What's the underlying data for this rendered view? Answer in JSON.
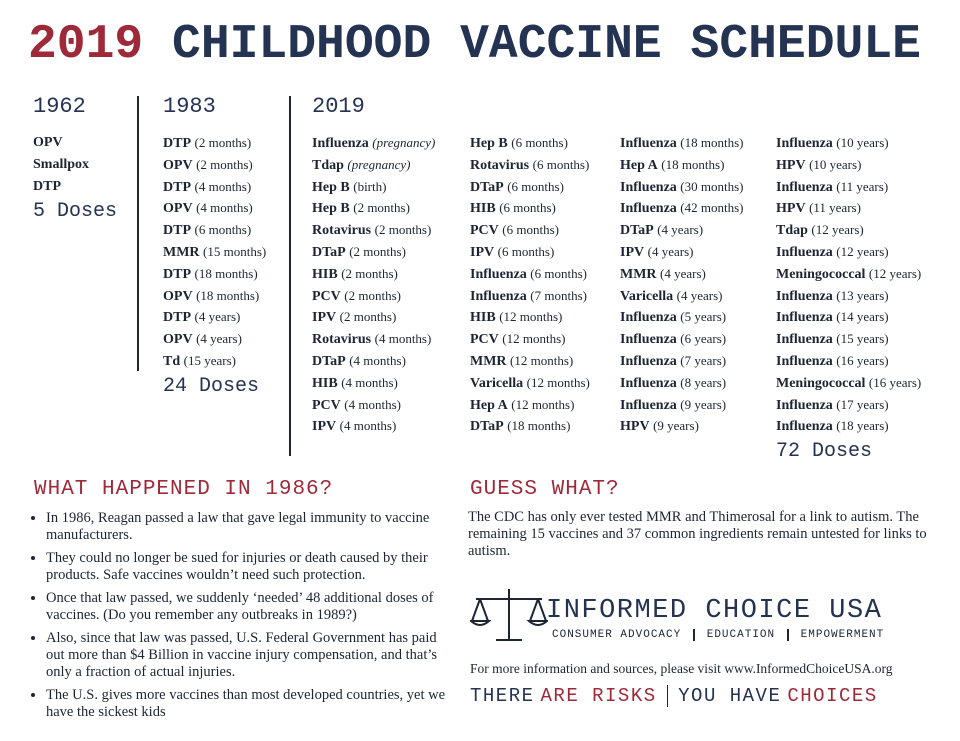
{
  "title": {
    "year": "2019",
    "rest": "CHILDHOOD VACCINE SCHEDULE"
  },
  "schedules": [
    {
      "heading": "1962",
      "total": "5 Doses",
      "columns": [
        [
          {
            "name": "OPV"
          },
          {
            "name": "Smallpox"
          },
          {
            "name": "DTP"
          }
        ]
      ]
    },
    {
      "heading": "1983",
      "total": "24 Doses",
      "columns": [
        [
          {
            "name": "DTP",
            "detail": "(2 months)"
          },
          {
            "name": "OPV",
            "detail": "(2 months)"
          },
          {
            "name": "DTP",
            "detail": "(4 months)"
          },
          {
            "name": "OPV",
            "detail": "(4 months)"
          },
          {
            "name": "DTP",
            "detail": "(6 months)"
          },
          {
            "name": "MMR",
            "detail": "(15 months)"
          },
          {
            "name": "DTP",
            "detail": "(18 months)"
          },
          {
            "name": "OPV",
            "detail": "(18 months)"
          },
          {
            "name": "DTP",
            "detail": "(4 years)"
          },
          {
            "name": "OPV",
            "detail": "(4 years)"
          },
          {
            "name": "Td",
            "detail": "(15 years)"
          }
        ]
      ]
    },
    {
      "heading": "2019",
      "total": "72 Doses",
      "columns": [
        [
          {
            "name": "Influenza",
            "detail": "(pregnancy)"
          },
          {
            "name": "Tdap",
            "detail": "(pregnancy)"
          },
          {
            "name": "Hep B",
            "detail": "(birth)"
          },
          {
            "name": "Hep B",
            "detail": "(2 months)"
          },
          {
            "name": "Rotavirus",
            "detail": "(2 months)"
          },
          {
            "name": "DTaP",
            "detail": "(2 months)"
          },
          {
            "name": "HIB",
            "detail": "(2 months)"
          },
          {
            "name": "PCV",
            "detail": "(2 months)"
          },
          {
            "name": "IPV",
            "detail": "(2 months)"
          },
          {
            "name": "Rotavirus",
            "detail": "(4 months)"
          },
          {
            "name": "DTaP",
            "detail": "(4 months)"
          },
          {
            "name": "HIB",
            "detail": "(4 months)"
          },
          {
            "name": "PCV",
            "detail": "(4 months)"
          },
          {
            "name": "IPV",
            "detail": "(4 months)"
          }
        ],
        [
          {
            "name": "Hep B",
            "detail": "(6 months)"
          },
          {
            "name": "Rotavirus",
            "detail": "(6 months)"
          },
          {
            "name": "DTaP",
            "detail": "(6 months)"
          },
          {
            "name": "HIB",
            "detail": "(6 months)"
          },
          {
            "name": "PCV",
            "detail": "(6 months)"
          },
          {
            "name": "IPV",
            "detail": "(6 months)"
          },
          {
            "name": "Influenza",
            "detail": "(6 months)"
          },
          {
            "name": "Influenza",
            "detail": "(7 months)"
          },
          {
            "name": "HIB",
            "detail": "(12 months)"
          },
          {
            "name": "PCV",
            "detail": "(12 months)"
          },
          {
            "name": "MMR",
            "detail": "(12 months)"
          },
          {
            "name": "Varicella",
            "detail": "(12 months)"
          },
          {
            "name": "Hep A",
            "detail": "(12 months)"
          },
          {
            "name": "DTaP",
            "detail": "(18 months)"
          }
        ],
        [
          {
            "name": "Influenza",
            "detail": "(18 months)"
          },
          {
            "name": "Hep A",
            "detail": "(18 months)"
          },
          {
            "name": "Influenza",
            "detail": "(30 months)"
          },
          {
            "name": "Influenza",
            "detail": "(42 months)"
          },
          {
            "name": "DTaP",
            "detail": "(4 years)"
          },
          {
            "name": "IPV",
            "detail": "(4 years)"
          },
          {
            "name": "MMR",
            "detail": "(4 years)"
          },
          {
            "name": "Varicella",
            "detail": "(4 years)"
          },
          {
            "name": "Influenza",
            "detail": "(5 years)"
          },
          {
            "name": "Influenza",
            "detail": "(6 years)"
          },
          {
            "name": "Influenza",
            "detail": "(7 years)"
          },
          {
            "name": "Influenza",
            "detail": "(8 years)"
          },
          {
            "name": "Influenza",
            "detail": "(9 years)"
          },
          {
            "name": "HPV",
            "detail": "(9 years)"
          }
        ],
        [
          {
            "name": "Influenza",
            "detail": "(10 years)"
          },
          {
            "name": "HPV",
            "detail": "(10 years)"
          },
          {
            "name": "Influenza",
            "detail": "(11 years)"
          },
          {
            "name": "HPV",
            "detail": "(11 years)"
          },
          {
            "name": "Tdap",
            "detail": "(12 years)"
          },
          {
            "name": "Influenza",
            "detail": "(12 years)"
          },
          {
            "name": "Meningococcal",
            "detail": "(12 years)"
          },
          {
            "name": "Influenza",
            "detail": "(13 years)"
          },
          {
            "name": "Influenza",
            "detail": "(14 years)"
          },
          {
            "name": "Influenza",
            "detail": "(15 years)"
          },
          {
            "name": "Influenza",
            "detail": "(16 years)"
          },
          {
            "name": "Meningococcal",
            "detail": "(16 years)"
          },
          {
            "name": "Influenza",
            "detail": "(17 years)"
          },
          {
            "name": "Influenza",
            "detail": "(18 years)"
          }
        ]
      ]
    }
  ],
  "left_section": {
    "heading": "WHAT HAPPENED IN 1986?",
    "bullets": [
      "In 1986, Reagan passed a law that gave legal immunity to vaccine manufacturers.",
      "They could no longer be sued for injuries or death caused by their products. Safe vaccines wouldn’t need such protection.",
      "Once that law passed, we suddenly ‘needed’ 48 additional doses of vaccines. (Do you remember any outbreaks in 1989?)",
      "Also, since that law was passed, U.S. Federal Government has paid out more than $4 Billion in vaccine injury compensation, and that’s only a fraction of actual injuries.",
      "The U.S. gives more vaccines than most developed countries, yet we have the sickest kids"
    ]
  },
  "right_section": {
    "heading": "GUESS WHAT?",
    "paragraph": "The CDC has only ever tested MMR and Thimerosal for a link to autism. The remaining 15 vaccines and 37 common ingredients remain untested for links to autism.",
    "logo": {
      "name": "INFORMED CHOICE USA",
      "tagline": [
        "CONSUMER ADVOCACY",
        "EDUCATION",
        "EMPOWERMENT"
      ]
    },
    "info": "For more information and sources, please visit www.InformedChoiceUSA.org",
    "slogan": [
      "THERE",
      "ARE RISKS",
      "YOU HAVE",
      "CHOICES"
    ]
  }
}
